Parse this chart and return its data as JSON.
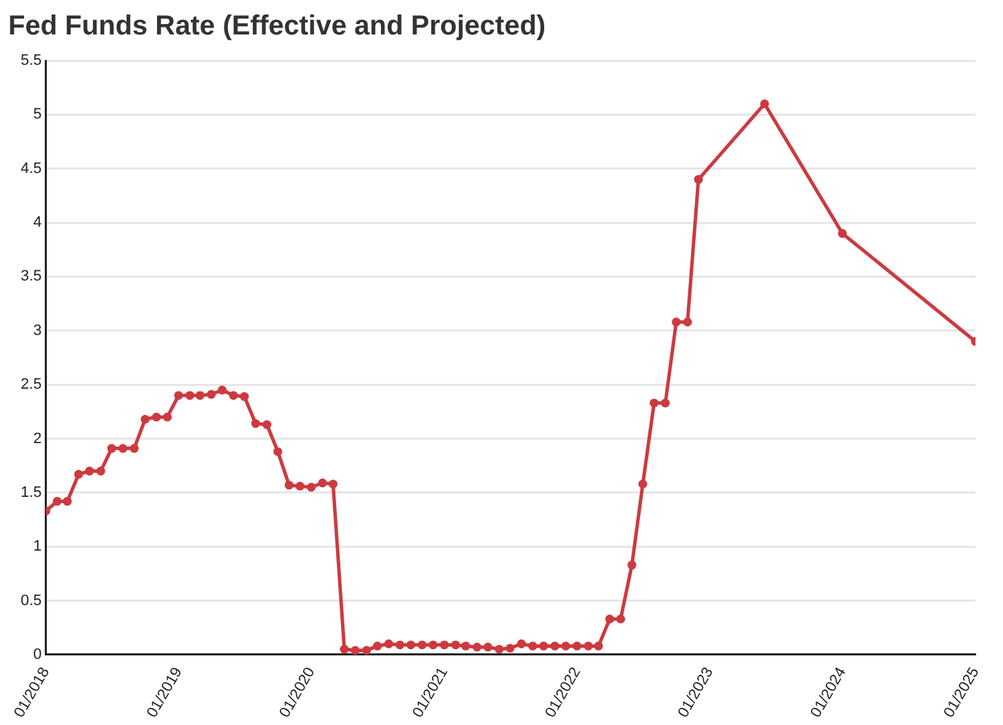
{
  "chart_data": {
    "type": "line",
    "title": "Fed Funds Rate (Effective and Projected)",
    "x": [
      "2018-01",
      "2018-02",
      "2018-03",
      "2018-04",
      "2018-05",
      "2018-06",
      "2018-07",
      "2018-08",
      "2018-09",
      "2018-10",
      "2018-11",
      "2018-12",
      "2019-01",
      "2019-02",
      "2019-03",
      "2019-04",
      "2019-05",
      "2019-06",
      "2019-07",
      "2019-08",
      "2019-09",
      "2019-10",
      "2019-11",
      "2019-12",
      "2020-01",
      "2020-02",
      "2020-03",
      "2020-04",
      "2020-05",
      "2020-06",
      "2020-07",
      "2020-08",
      "2020-09",
      "2020-10",
      "2020-11",
      "2020-12",
      "2021-01",
      "2021-02",
      "2021-03",
      "2021-04",
      "2021-05",
      "2021-06",
      "2021-07",
      "2021-08",
      "2021-09",
      "2021-10",
      "2021-11",
      "2021-12",
      "2022-01",
      "2022-02",
      "2022-03",
      "2022-04",
      "2022-05",
      "2022-06",
      "2022-07",
      "2022-08",
      "2022-09",
      "2022-10",
      "2022-11",
      "2022-12",
      "2023-06",
      "2024-01",
      "2025-01"
    ],
    "series": [
      {
        "color": "#cc3a3f",
        "values": [
          1.33,
          1.42,
          1.42,
          1.67,
          1.7,
          1.7,
          1.91,
          1.91,
          1.91,
          2.18,
          2.2,
          2.2,
          2.4,
          2.4,
          2.4,
          2.41,
          2.45,
          2.4,
          2.39,
          2.14,
          2.13,
          1.88,
          1.57,
          1.56,
          1.55,
          1.59,
          1.58,
          0.05,
          0.04,
          0.04,
          0.08,
          0.1,
          0.09,
          0.09,
          0.09,
          0.09,
          0.09,
          0.09,
          0.08,
          0.07,
          0.07,
          0.05,
          0.06,
          0.1,
          0.08,
          0.08,
          0.08,
          0.08,
          0.08,
          0.08,
          0.08,
          0.33,
          0.33,
          0.83,
          1.58,
          2.33,
          2.33,
          3.08,
          3.08,
          4.4,
          5.1,
          3.9,
          2.9
        ]
      }
    ],
    "xlim": [
      "2018-01",
      "2025-01"
    ],
    "xticks": [
      {
        "value": "2018-01",
        "label": "01/2018"
      },
      {
        "value": "2019-01",
        "label": "01/2019"
      },
      {
        "value": "2020-01",
        "label": "01/2020"
      },
      {
        "value": "2021-01",
        "label": "01/2021"
      },
      {
        "value": "2022-01",
        "label": "01/2022"
      },
      {
        "value": "2023-01",
        "label": "01/2023"
      },
      {
        "value": "2024-01",
        "label": "01/2024"
      },
      {
        "value": "2025-01",
        "label": "01/2025"
      }
    ],
    "ylim": [
      0,
      5.5
    ],
    "yticks": [
      0,
      0.5,
      1,
      1.5,
      2,
      2.5,
      3,
      3.5,
      4,
      4.5,
      5,
      5.5
    ],
    "grid": "y",
    "legend": false,
    "marker": "circle",
    "line_style": "solid"
  }
}
